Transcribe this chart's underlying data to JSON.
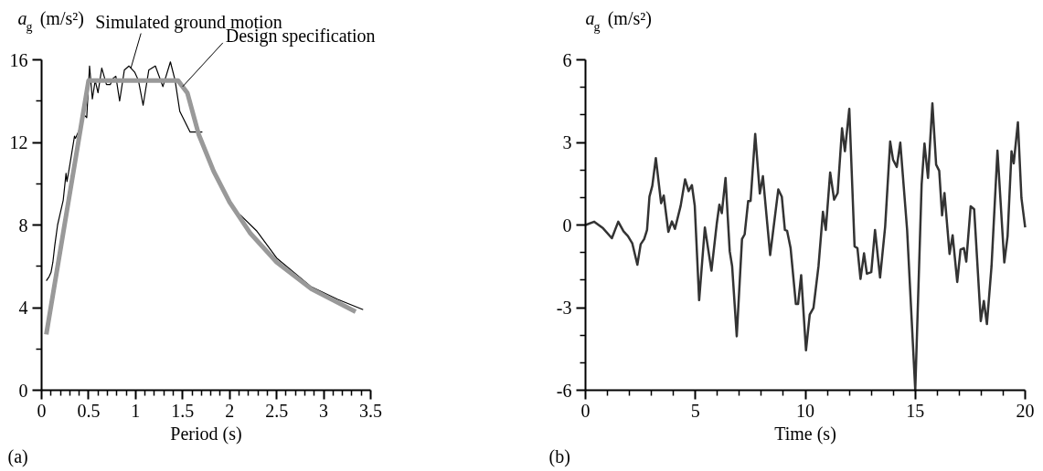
{
  "chart_data": [
    {
      "type": "line",
      "xlabel": "Period (s)",
      "ylabel": "a$_{g}$ (m/s²)",
      "xlim": [
        0,
        3.5
      ],
      "ylim": [
        0,
        16
      ],
      "xticks": [
        0,
        0.5,
        1,
        1.5,
        2,
        2.5,
        3,
        3.5
      ],
      "yticks": [
        0,
        4,
        8,
        12,
        16
      ],
      "annotations": [
        {
          "text": "Simulated ground motion",
          "x": 0.95,
          "y": 15.6
        },
        {
          "text": "Design specification",
          "x": 1.5,
          "y": 14.7
        },
        "(a)"
      ],
      "series": [
        {
          "color": "#000000",
          "x": [
            0.05,
            0.08,
            0.1,
            0.12,
            0.14,
            0.17,
            0.2,
            0.23,
            0.26,
            0.27,
            0.3,
            0.35,
            0.36,
            0.4,
            0.44,
            0.48,
            0.51,
            0.54,
            0.57,
            0.6,
            0.64,
            0.69,
            0.73,
            0.76,
            0.79,
            0.83,
            0.88,
            0.93,
            0.99,
            1.03,
            1.08,
            1.14,
            1.21,
            1.29,
            1.37,
            1.42,
            1.47,
            1.58,
            1.71,
            1.84,
            2.0,
            2.11,
            2.29,
            2.5,
            2.87,
            3.15,
            3.42
          ],
          "values": [
            5.3,
            5.5,
            5.7,
            6.2,
            7.0,
            8.0,
            8.6,
            9.2,
            10.5,
            10.1,
            10.9,
            12.3,
            12.2,
            12.6,
            13.4,
            13.2,
            15.7,
            14.1,
            15.0,
            14.4,
            15.6,
            14.8,
            14.8,
            15.1,
            15.2,
            14.0,
            15.5,
            15.7,
            15.4,
            15.0,
            13.8,
            15.5,
            15.7,
            14.7,
            15.9,
            15.0,
            13.5,
            12.5,
            12.5,
            null,
            null,
            8.5,
            7.7,
            6.4,
            5.0,
            4.4,
            3.9
          ]
        },
        {
          "color": "#999999",
          "x": [
            0.05,
            0.5,
            1.45,
            1.55,
            1.67,
            1.83,
            2.0,
            2.22,
            2.5,
            2.87,
            3.34
          ],
          "values": [
            2.7,
            15,
            15,
            14.4,
            12.4,
            10.6,
            9.1,
            7.6,
            6.2,
            4.9,
            3.8
          ]
        }
      ]
    },
    {
      "type": "line",
      "xlabel": "Time (s)",
      "ylabel": "a$_{g}$ (m/s²)",
      "xlim": [
        0,
        20
      ],
      "ylim": [
        -6,
        6
      ],
      "xticks": [
        0,
        5,
        10,
        15,
        20
      ],
      "yticks": [
        -6,
        -3,
        0,
        3,
        6
      ],
      "annotations": [
        "(b)"
      ],
      "series": [
        {
          "color": "#333333",
          "x": [
            0,
            0.4,
            0.8,
            1.2,
            1.49,
            1.73,
            1.93,
            2.13,
            2.36,
            2.51,
            2.67,
            2.8,
            2.91,
            3.04,
            3.2,
            3.44,
            3.56,
            3.77,
            3.93,
            4.07,
            4.33,
            4.53,
            4.69,
            4.84,
            4.97,
            5.17,
            5.43,
            5.73,
            5.97,
            6.09,
            6.2,
            6.37,
            6.56,
            6.67,
            6.88,
            7.12,
            7.24,
            7.4,
            7.51,
            7.72,
            7.93,
            8.07,
            8.4,
            8.77,
            8.93,
            9.07,
            9.17,
            9.33,
            9.57,
            9.67,
            9.81,
            10.03,
            10.2,
            10.37,
            10.6,
            10.8,
            10.93,
            11.13,
            11.31,
            11.47,
            11.67,
            11.8,
            12.0,
            12.24,
            12.37,
            12.51,
            12.67,
            12.8,
            13.0,
            13.17,
            13.4,
            13.63,
            13.86,
            13.99,
            14.16,
            14.32,
            14.63,
            15.0,
            15.29,
            15.42,
            15.58,
            15.78,
            15.95,
            16.09,
            16.22,
            16.33,
            16.56,
            16.7,
            16.91,
            17.06,
            17.21,
            17.32,
            17.52,
            17.68,
            17.98,
            18.12,
            18.26,
            18.47,
            18.74,
            19.05,
            19.2,
            19.38,
            19.48,
            19.67,
            19.83,
            20.0
          ],
          "values": [
            0,
            0.12,
            -0.12,
            -0.48,
            0.12,
            -0.23,
            -0.4,
            -0.67,
            -1.44,
            -0.7,
            -0.51,
            -0.18,
            1.03,
            1.42,
            2.43,
            0.79,
            1.07,
            -0.25,
            0.13,
            -0.14,
            0.7,
            1.66,
            1.23,
            1.45,
            0.7,
            -2.73,
            -0.09,
            -1.66,
            0.04,
            0.74,
            0.43,
            1.71,
            -0.95,
            -1.49,
            -4.04,
            -0.51,
            -0.34,
            0.87,
            0.87,
            3.31,
            1.14,
            1.77,
            -1.09,
            1.29,
            1.03,
            -0.18,
            -0.21,
            -0.84,
            -2.87,
            -2.87,
            -1.82,
            -4.55,
            -3.25,
            -3.01,
            -1.49,
            0.48,
            -0.18,
            1.91,
            0.92,
            1.16,
            3.51,
            2.68,
            4.22,
            -0.78,
            -0.84,
            -1.96,
            -1.03,
            -1.77,
            -1.71,
            -0.18,
            -1.91,
            -0.07,
            3.03,
            2.37,
            2.11,
            2.99,
            -0.18,
            -6.0,
            1.47,
            2.96,
            1.71,
            4.42,
            2.19,
            1.97,
            0.35,
            1.16,
            -1.05,
            -0.37,
            -2.07,
            -0.89,
            -0.84,
            -1.33,
            0.68,
            0.57,
            -3.49,
            -2.76,
            -3.6,
            -1.49,
            2.7,
            -1.36,
            -0.4,
            2.68,
            2.24,
            3.73,
            0.98,
            -0.09
          ]
        }
      ]
    }
  ]
}
